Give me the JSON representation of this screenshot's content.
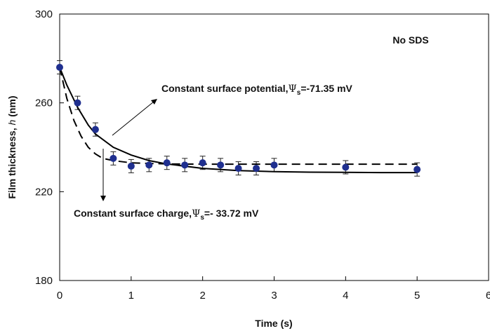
{
  "chart_data": {
    "type": "scatter",
    "title": "",
    "xlabel": "Time (s)",
    "ylabel_main": "Film thickness, ",
    "ylabel_var": "h",
    "ylabel_unit": " (nm)",
    "xlim": [
      0,
      6
    ],
    "ylim": [
      180,
      300
    ],
    "xticks": [
      0,
      1,
      2,
      3,
      4,
      5,
      6
    ],
    "yticks": [
      180,
      220,
      260,
      300
    ],
    "grid": false,
    "legend": "none",
    "series": [
      {
        "kind": "markers-with-errorbars",
        "color": "#1f2f8f",
        "x": [
          0,
          0.25,
          0.5,
          0.75,
          1.0,
          1.25,
          1.5,
          1.75,
          2.0,
          2.25,
          2.5,
          2.75,
          3.0,
          4.0,
          5.0
        ],
        "y": [
          276,
          260,
          248,
          235,
          231.5,
          232,
          233,
          232,
          233,
          232,
          230.5,
          230.5,
          232,
          231,
          230
        ],
        "err": [
          3,
          3,
          3,
          3,
          3,
          3,
          3,
          3,
          3,
          3,
          3,
          3,
          3,
          3,
          3
        ]
      },
      {
        "kind": "solid-line",
        "color": "#000000",
        "x": [
          0,
          0.1,
          0.25,
          0.4,
          0.5,
          0.75,
          1.0,
          1.25,
          1.5,
          2.0,
          2.5,
          3.0,
          3.5,
          4.0,
          4.5,
          5.0
        ],
        "y": [
          276,
          268,
          258,
          250,
          246,
          240,
          236.5,
          234,
          232.5,
          230.5,
          229.5,
          229,
          228.8,
          228.7,
          228.6,
          228.6
        ]
      },
      {
        "kind": "dashed-line",
        "color": "#000000",
        "x": [
          0,
          0.1,
          0.2,
          0.3,
          0.4,
          0.5,
          0.6,
          0.75,
          1.0,
          1.5,
          2.0,
          3.0,
          4.0,
          5.0
        ],
        "y": [
          276,
          262,
          252,
          245,
          240,
          237,
          235,
          234,
          233,
          232.5,
          232.4,
          232.4,
          232.4,
          232.4
        ]
      }
    ],
    "annotations": [
      {
        "prefix": "Constant surface potential,",
        "symbol": "Ψ",
        "subscript": "s",
        "value": "=-71.35 mV"
      },
      {
        "prefix": "Constant surface charge,",
        "symbol": "Ψ",
        "subscript": "s",
        "value": "=- 33.72 mV"
      }
    ],
    "corner_label": "No SDS"
  }
}
